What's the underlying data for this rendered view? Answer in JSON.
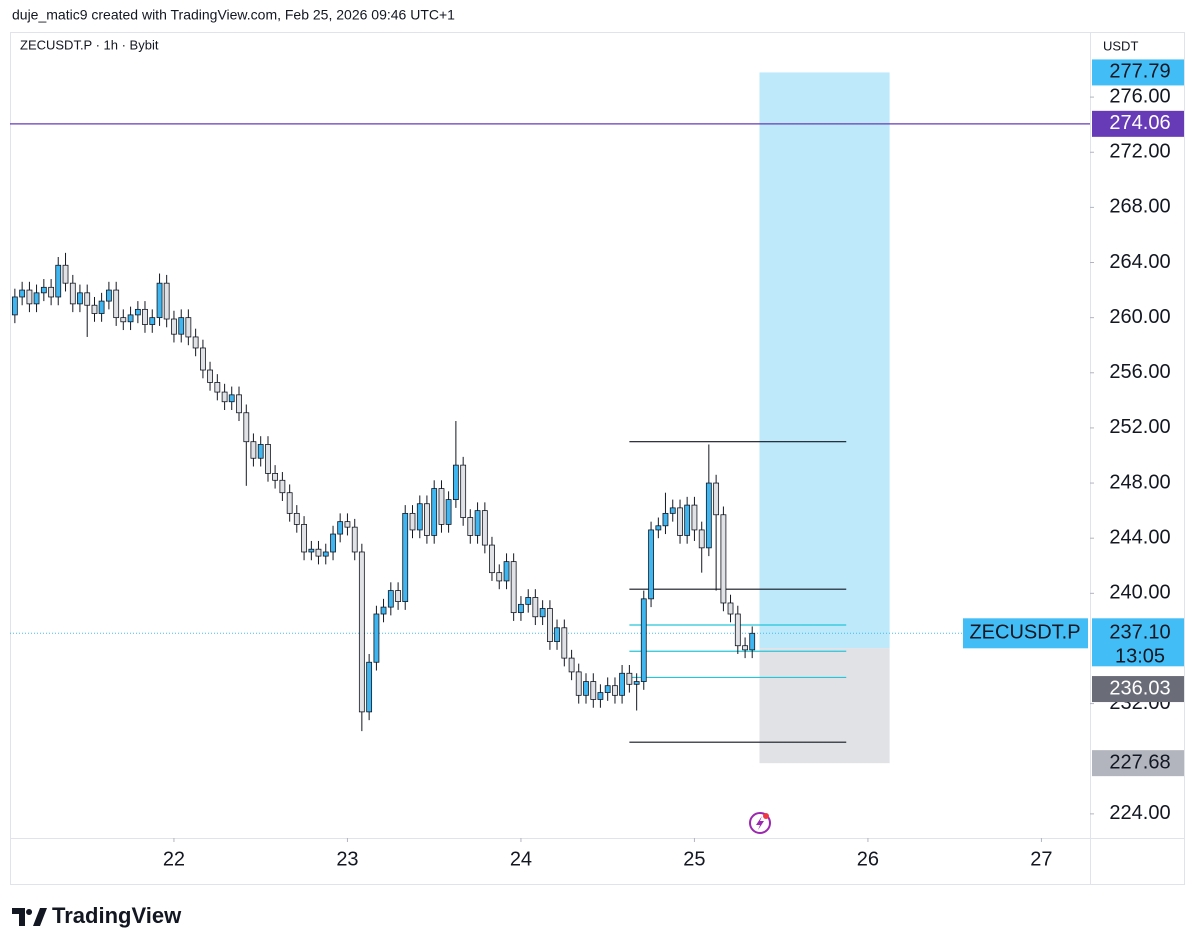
{
  "header": {
    "text": "duje_matic9 created with TradingView.com, Feb 25, 2026 09:46 UTC+1",
    "logo": "TradingView"
  },
  "chart_data": {
    "type": "candlestick",
    "title": "ZECUSDT.P · 1h · Bybit",
    "currency": "USDT",
    "symbol_tag": "ZECUSDT.P",
    "up_color": "#3fb6ef",
    "down_color": "#e1e2e6",
    "x": [
      21.083,
      21.125,
      21.167,
      21.208,
      21.25,
      21.292,
      21.333,
      21.375,
      21.417,
      21.458,
      21.5,
      21.542,
      21.583,
      21.625,
      21.667,
      21.708,
      21.75,
      21.792,
      21.833,
      21.875,
      21.917,
      21.958,
      22,
      22.042,
      22.083,
      22.125,
      22.167,
      22.208,
      22.25,
      22.292,
      22.333,
      22.375,
      22.417,
      22.458,
      22.5,
      22.542,
      22.583,
      22.625,
      22.667,
      22.708,
      22.75,
      22.792,
      22.833,
      22.875,
      22.917,
      22.958,
      23,
      23.042,
      23.083,
      23.125,
      23.167,
      23.208,
      23.25,
      23.292,
      23.333,
      23.375,
      23.417,
      23.458,
      23.5,
      23.542,
      23.583,
      23.625,
      23.667,
      23.708,
      23.75,
      23.792,
      23.833,
      23.875,
      23.917,
      23.958,
      24,
      24.042,
      24.083,
      24.125,
      24.167,
      24.208,
      24.25,
      24.292,
      24.333,
      24.375,
      24.417,
      24.458,
      24.5,
      24.542,
      24.583,
      24.625,
      24.667,
      24.708,
      24.75,
      24.792,
      24.833,
      24.875,
      24.917,
      24.958,
      25,
      25.042,
      25.083,
      25.125,
      25.167,
      25.208,
      25.25,
      25.292,
      25.333
    ],
    "open": [
      260.2,
      261.5,
      262.0,
      261.0,
      261.8,
      262.2,
      261.5,
      263.8,
      262.5,
      261.0,
      261.8,
      260.9,
      260.3,
      261.2,
      262.0,
      260.0,
      259.7,
      260.2,
      260.6,
      259.5,
      260.0,
      262.5,
      259.9,
      258.8,
      260.0,
      258.6,
      257.8,
      256.2,
      255.3,
      254.6,
      253.9,
      254.4,
      253.1,
      251.0,
      249.8,
      250.8,
      248.7,
      248.2,
      247.3,
      245.8,
      245.0,
      243.0,
      243.2,
      242.7,
      243.0,
      244.3,
      245.2,
      244.8,
      243.0,
      231.4,
      235.0,
      238.5,
      239.0,
      240.2,
      239.4,
      245.8,
      244.6,
      246.5,
      244.2,
      247.6,
      245.0,
      246.8,
      249.3,
      245.5,
      244.2,
      246.0,
      243.5,
      241.5,
      240.9,
      242.3,
      238.6,
      239.2,
      239.7,
      238.3,
      238.9,
      236.5,
      237.5,
      235.3,
      234.3,
      232.6,
      233.6,
      232.3,
      232.8,
      233.3,
      232.6,
      234.2,
      233.4,
      233.6,
      239.6,
      244.6,
      244.9,
      245.8,
      246.2,
      244.2,
      246.4,
      244.6,
      243.3,
      248.0,
      245.7,
      239.3,
      238.5,
      236.2,
      235.9
    ],
    "high": [
      262.1,
      262.6,
      262.6,
      262.4,
      262.8,
      262.8,
      264.4,
      264.7,
      263.1,
      262.4,
      262.4,
      261.5,
      261.8,
      262.6,
      262.6,
      260.6,
      260.8,
      261.2,
      261.2,
      260.6,
      263.2,
      263.1,
      260.5,
      260.6,
      260.6,
      259.2,
      258.4,
      256.8,
      255.9,
      255.2,
      255.0,
      255.0,
      253.7,
      251.6,
      251.4,
      251.4,
      249.3,
      248.8,
      247.9,
      246.4,
      245.6,
      243.8,
      243.8,
      243.6,
      244.9,
      245.8,
      245.8,
      245.4,
      243.6,
      235.6,
      239.1,
      239.6,
      240.8,
      240.8,
      246.4,
      246.4,
      247.1,
      247.1,
      248.2,
      248.2,
      247.4,
      252.5,
      249.9,
      246.1,
      246.6,
      246.6,
      244.1,
      242.1,
      242.9,
      242.9,
      239.8,
      240.3,
      240.3,
      239.5,
      239.5,
      238.1,
      238.1,
      235.9,
      234.9,
      234.2,
      234.2,
      233.4,
      233.9,
      233.9,
      234.8,
      234.8,
      234.2,
      240.2,
      245.2,
      245.5,
      247.3,
      246.8,
      246.8,
      247.0,
      247.0,
      245.2,
      250.8,
      248.6,
      246.3,
      239.9,
      239.1,
      236.8,
      237.6
    ],
    "low": [
      259.6,
      260.9,
      260.4,
      260.4,
      261.2,
      260.9,
      260.9,
      261.9,
      260.4,
      260.4,
      258.6,
      259.7,
      259.7,
      260.6,
      259.4,
      259.1,
      259.1,
      259.6,
      258.9,
      258.9,
      259.4,
      259.3,
      258.2,
      258.2,
      258.0,
      257.2,
      255.6,
      254.7,
      254.0,
      253.3,
      253.3,
      252.5,
      247.8,
      249.2,
      249.2,
      248.1,
      247.6,
      246.7,
      245.2,
      244.4,
      242.4,
      242.4,
      242.1,
      242.1,
      242.4,
      243.7,
      244.2,
      242.4,
      230.0,
      230.8,
      234.4,
      237.9,
      238.4,
      238.8,
      238.8,
      244.0,
      244.0,
      243.6,
      243.6,
      244.4,
      244.4,
      246.2,
      244.9,
      243.6,
      243.6,
      242.9,
      240.9,
      240.3,
      240.3,
      238.0,
      238.0,
      238.6,
      237.7,
      237.7,
      235.9,
      235.9,
      234.7,
      233.7,
      232.0,
      232.0,
      231.7,
      231.7,
      232.2,
      232.0,
      232.0,
      232.8,
      231.5,
      233.0,
      239.0,
      244.0,
      244.3,
      245.2,
      243.6,
      243.6,
      243.8,
      241.5,
      242.7,
      240.2,
      238.7,
      237.9,
      235.6,
      235.3,
      235.3
    ],
    "close": [
      261.5,
      262.0,
      261.0,
      261.8,
      262.2,
      261.5,
      263.8,
      262.5,
      261.0,
      261.8,
      260.9,
      260.3,
      261.2,
      262.0,
      260.0,
      259.7,
      260.2,
      260.6,
      259.5,
      260.0,
      262.5,
      259.9,
      258.8,
      260.0,
      258.6,
      257.8,
      256.2,
      255.3,
      254.6,
      253.9,
      254.4,
      253.1,
      251.0,
      249.8,
      250.8,
      248.7,
      248.2,
      247.3,
      245.8,
      245.0,
      243.0,
      243.2,
      242.7,
      243.0,
      244.3,
      245.2,
      244.8,
      243.0,
      231.4,
      235.0,
      238.5,
      239.0,
      240.2,
      239.4,
      245.8,
      244.6,
      246.5,
      244.2,
      247.6,
      245.0,
      246.8,
      249.3,
      245.5,
      244.2,
      246.0,
      243.5,
      241.5,
      240.9,
      242.3,
      238.6,
      239.2,
      239.7,
      238.3,
      238.9,
      236.5,
      237.5,
      235.3,
      234.3,
      232.6,
      233.6,
      232.3,
      232.8,
      233.3,
      232.6,
      234.2,
      233.4,
      233.6,
      239.6,
      244.6,
      244.9,
      245.8,
      246.2,
      244.2,
      246.4,
      244.6,
      243.3,
      248.0,
      245.7,
      239.3,
      238.5,
      236.2,
      235.9,
      237.1
    ],
    "xlim": [
      21.055,
      27.28
    ],
    "ylim": [
      222.25,
      280.65
    ],
    "xticks": [
      22,
      23,
      24,
      25,
      26,
      27
    ],
    "yticks": [
      {
        "value": 224,
        "label": "224.00"
      },
      {
        "value": 232,
        "label": "232.00"
      },
      {
        "value": 240,
        "label": "240.00"
      },
      {
        "value": 244,
        "label": "244.00"
      },
      {
        "value": 248,
        "label": "248.00"
      },
      {
        "value": 252,
        "label": "252.00"
      },
      {
        "value": 256,
        "label": "256.00"
      },
      {
        "value": 260,
        "label": "260.00"
      },
      {
        "value": 264,
        "label": "264.00"
      },
      {
        "value": 268,
        "label": "268.00"
      },
      {
        "value": 272,
        "label": "272.00"
      },
      {
        "value": 276,
        "label": "276.00"
      }
    ],
    "horizontal_line": {
      "value": 274.06,
      "color": "#673ab7"
    },
    "current_price": {
      "value": 237.1,
      "label": "237.10",
      "countdown": "13:05",
      "color": "#42bdf5"
    },
    "levels": {
      "start": 24.625,
      "end": 25.875,
      "lines": [
        {
          "value": 251.0,
          "color": "#131722"
        },
        {
          "value": 240.3,
          "color": "#131722"
        },
        {
          "value": 237.7,
          "color": "#26c6da"
        },
        {
          "value": 235.8,
          "color": "#26c6da"
        },
        {
          "value": 233.9,
          "color": "#26c6da"
        },
        {
          "value": 229.2,
          "color": "#131722"
        }
      ]
    },
    "position": {
      "start": 25.375,
      "end": 26.125,
      "target": 277.79,
      "entry": 236.03,
      "stop": 227.68,
      "target_color": "#bde9fb",
      "stop_color": "#e1e2e6",
      "entry_tag_color": "#6a6d78",
      "stop_tag_color": "#b2b5be"
    }
  }
}
